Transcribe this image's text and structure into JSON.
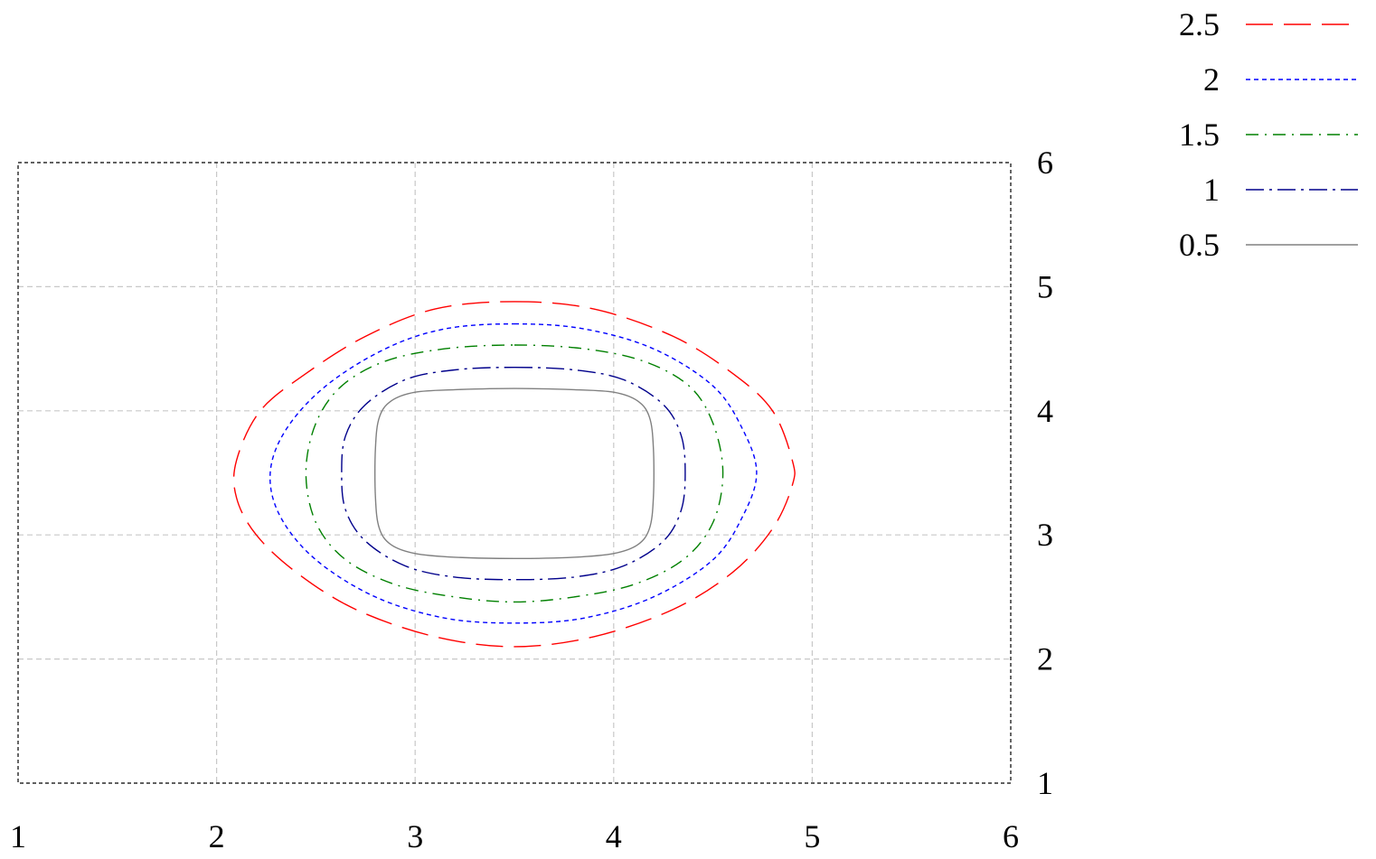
{
  "chart_data": {
    "type": "contour",
    "x_ticks": [
      "1",
      "2",
      "3",
      "4",
      "5",
      "6"
    ],
    "y_ticks": [
      "1",
      "2",
      "3",
      "4",
      "5",
      "6"
    ],
    "xlim": [
      1,
      6
    ],
    "ylim": [
      1,
      6
    ],
    "grid": true,
    "legend_position": "top-right, outside plot",
    "series": [
      {
        "name": "2.5",
        "color": "#ff0000",
        "dash": "long-dash",
        "points": [
          [
            3.5,
            4.88
          ],
          [
            3.9,
            4.82
          ],
          [
            4.3,
            4.6
          ],
          [
            4.6,
            4.3
          ],
          [
            4.8,
            4.0
          ],
          [
            4.9,
            3.6
          ],
          [
            4.9,
            3.4
          ],
          [
            4.8,
            3.05
          ],
          [
            4.6,
            2.7
          ],
          [
            4.3,
            2.4
          ],
          [
            3.9,
            2.18
          ],
          [
            3.5,
            2.1
          ],
          [
            3.1,
            2.18
          ],
          [
            2.7,
            2.4
          ],
          [
            2.4,
            2.7
          ],
          [
            2.2,
            3.0
          ],
          [
            2.1,
            3.3
          ],
          [
            2.1,
            3.6
          ],
          [
            2.22,
            4.0
          ],
          [
            2.45,
            4.3
          ],
          [
            2.75,
            4.6
          ],
          [
            3.1,
            4.82
          ]
        ]
      },
      {
        "name": "2",
        "color": "#0000ff",
        "dash": "short-dash",
        "points": [
          [
            3.5,
            4.7
          ],
          [
            3.85,
            4.66
          ],
          [
            4.2,
            4.5
          ],
          [
            4.5,
            4.2
          ],
          [
            4.65,
            3.85
          ],
          [
            4.72,
            3.5
          ],
          [
            4.65,
            3.15
          ],
          [
            4.5,
            2.8
          ],
          [
            4.2,
            2.5
          ],
          [
            3.85,
            2.33
          ],
          [
            3.5,
            2.29
          ],
          [
            3.15,
            2.33
          ],
          [
            2.8,
            2.5
          ],
          [
            2.5,
            2.8
          ],
          [
            2.32,
            3.15
          ],
          [
            2.27,
            3.5
          ],
          [
            2.35,
            3.85
          ],
          [
            2.55,
            4.2
          ],
          [
            2.85,
            4.5
          ],
          [
            3.15,
            4.66
          ]
        ]
      },
      {
        "name": "1.5",
        "color": "#008000",
        "dash": "dash-dot",
        "points": [
          [
            3.5,
            4.53
          ],
          [
            3.85,
            4.5
          ],
          [
            4.15,
            4.4
          ],
          [
            4.38,
            4.2
          ],
          [
            4.5,
            3.9
          ],
          [
            4.55,
            3.5
          ],
          [
            4.5,
            3.1
          ],
          [
            4.35,
            2.8
          ],
          [
            4.1,
            2.6
          ],
          [
            3.8,
            2.5
          ],
          [
            3.5,
            2.46
          ],
          [
            3.2,
            2.5
          ],
          [
            2.9,
            2.6
          ],
          [
            2.65,
            2.8
          ],
          [
            2.5,
            3.1
          ],
          [
            2.45,
            3.5
          ],
          [
            2.5,
            3.9
          ],
          [
            2.63,
            4.2
          ],
          [
            2.85,
            4.4
          ],
          [
            3.15,
            4.5
          ]
        ]
      },
      {
        "name": "1",
        "color": "#00008b",
        "dash": "long-dash-dot",
        "points": [
          [
            3.5,
            4.35
          ],
          [
            3.8,
            4.33
          ],
          [
            4.05,
            4.25
          ],
          [
            4.25,
            4.05
          ],
          [
            4.34,
            3.8
          ],
          [
            4.36,
            3.5
          ],
          [
            4.34,
            3.2
          ],
          [
            4.25,
            2.95
          ],
          [
            4.05,
            2.75
          ],
          [
            3.8,
            2.66
          ],
          [
            3.5,
            2.64
          ],
          [
            3.2,
            2.66
          ],
          [
            2.95,
            2.75
          ],
          [
            2.75,
            2.95
          ],
          [
            2.65,
            3.2
          ],
          [
            2.63,
            3.5
          ],
          [
            2.65,
            3.8
          ],
          [
            2.75,
            4.05
          ],
          [
            2.95,
            4.25
          ],
          [
            3.2,
            4.33
          ]
        ]
      },
      {
        "name": "0.5",
        "color": "#808080",
        "dash": "solid",
        "points": [
          [
            3.5,
            4.18
          ],
          [
            3.8,
            4.17
          ],
          [
            4.0,
            4.15
          ],
          [
            4.12,
            4.08
          ],
          [
            4.18,
            3.95
          ],
          [
            4.2,
            3.7
          ],
          [
            4.2,
            3.3
          ],
          [
            4.18,
            3.05
          ],
          [
            4.12,
            2.92
          ],
          [
            4.0,
            2.85
          ],
          [
            3.8,
            2.82
          ],
          [
            3.5,
            2.81
          ],
          [
            3.2,
            2.82
          ],
          [
            3.0,
            2.85
          ],
          [
            2.88,
            2.92
          ],
          [
            2.82,
            3.05
          ],
          [
            2.8,
            3.3
          ],
          [
            2.8,
            3.7
          ],
          [
            2.82,
            3.95
          ],
          [
            2.88,
            4.08
          ],
          [
            3.0,
            4.15
          ],
          [
            3.2,
            4.17
          ]
        ]
      }
    ]
  }
}
